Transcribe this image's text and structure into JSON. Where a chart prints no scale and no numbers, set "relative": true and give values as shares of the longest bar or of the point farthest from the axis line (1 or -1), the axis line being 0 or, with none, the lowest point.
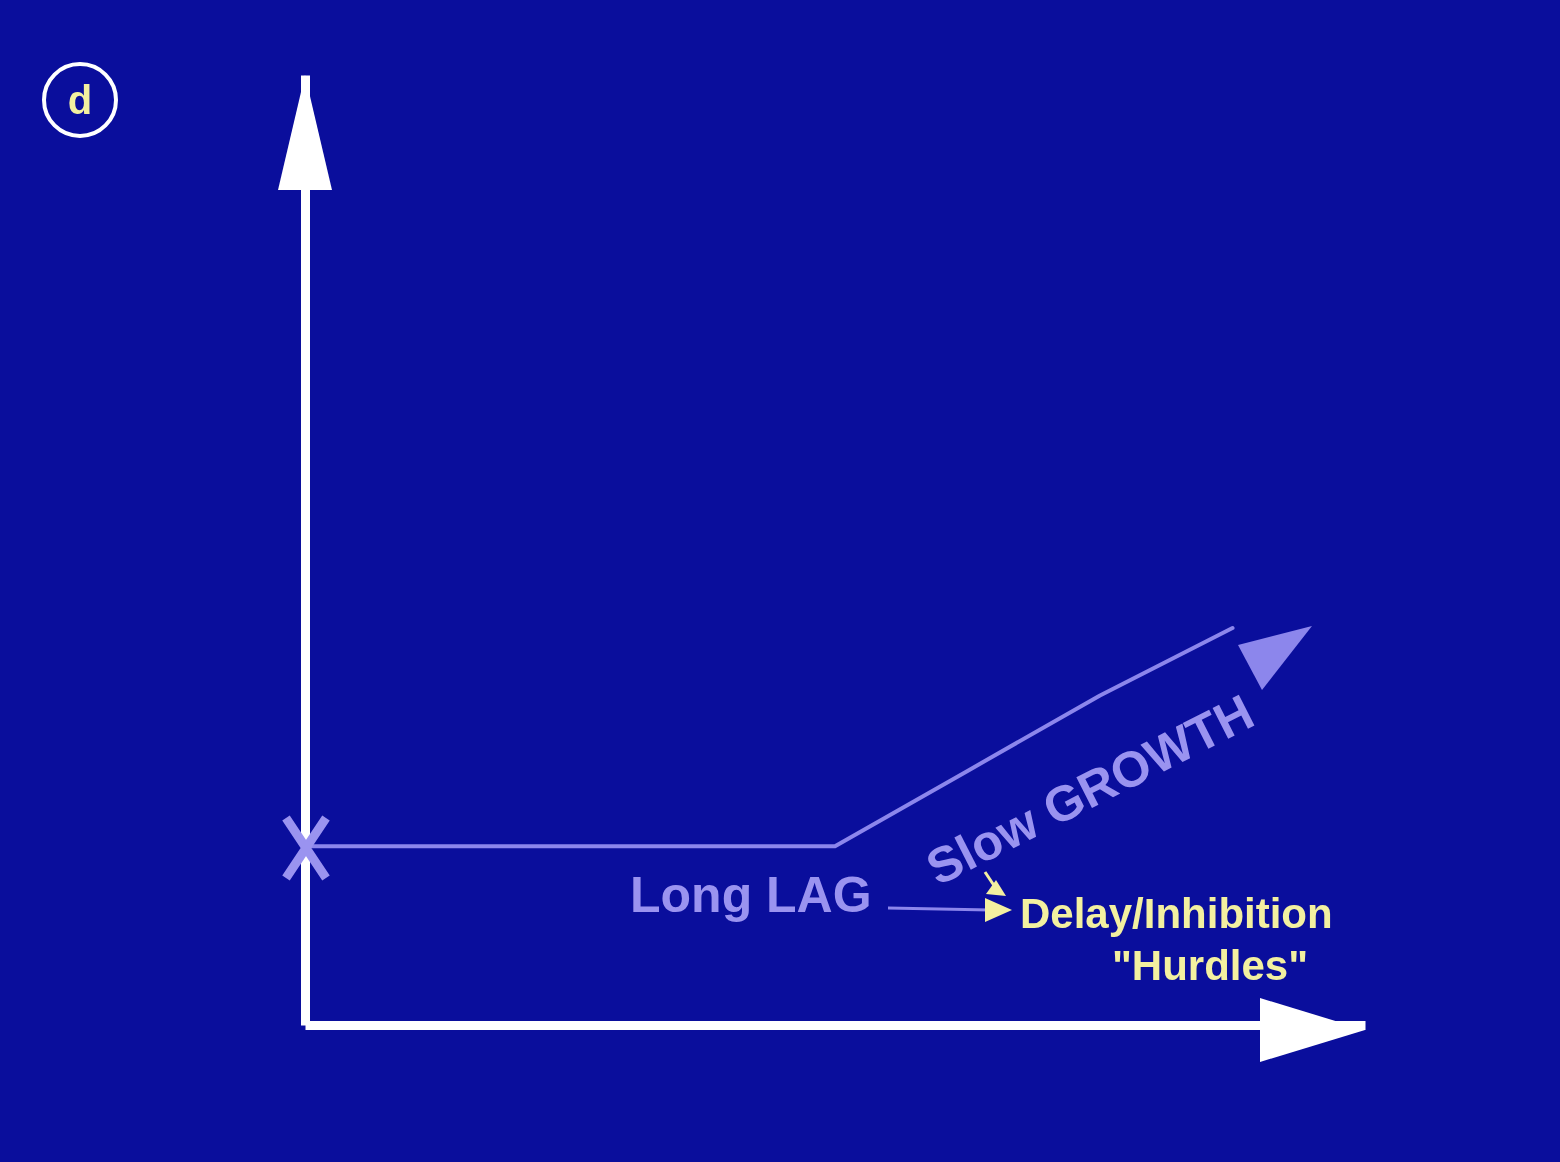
{
  "chart_data": {
    "type": "line",
    "relative": true,
    "categories": [
      null,
      null,
      null,
      null,
      null,
      null,
      null,
      null
    ],
    "series": [
      {
        "color": "#8c86ec",
        "values": [
          0.45,
          0.45,
          0.45,
          0.45,
          0.45,
          0.64,
          0.83,
          1
        ]
      }
    ],
    "annotations": [
      "d",
      "Long LAG",
      "Slow GROWTH",
      "Delay/Inhibition",
      "\"Hurdles\""
    ]
  }
}
